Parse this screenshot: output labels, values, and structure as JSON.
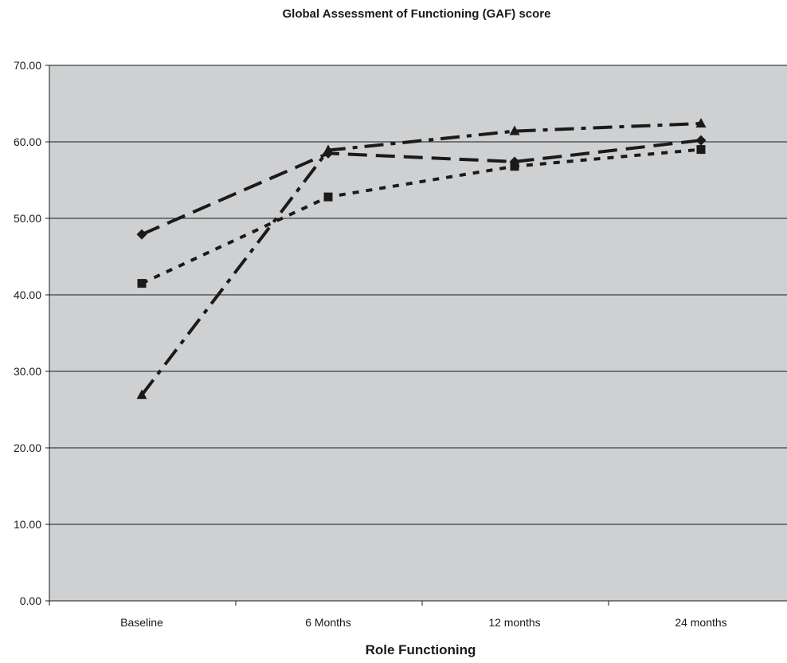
{
  "chart_data": {
    "type": "line",
    "title": "Global Assessment of Functioning (GAF) score",
    "xlabel": "Role Functioning",
    "ylabel": "",
    "categories": [
      "Baseline",
      "6 Months",
      "12 months",
      "24 months"
    ],
    "ylim": [
      0,
      70
    ],
    "yticks": [
      "0.00",
      "10.00",
      "20.00",
      "30.00",
      "40.00",
      "50.00",
      "60.00",
      "70.00"
    ],
    "grid": true,
    "plot_background": "#cfd0d2",
    "series": [
      {
        "marker": "diamond",
        "dash": "long-dash",
        "color": "#1a1a1a",
        "values": [
          47.9,
          58.5,
          57.4,
          60.2
        ]
      },
      {
        "marker": "square",
        "dash": "dotted",
        "color": "#1a1a1a",
        "values": [
          41.5,
          52.8,
          56.8,
          59.0
        ]
      },
      {
        "marker": "triangle",
        "dash": "dash-dot",
        "color": "#1a1a1a",
        "values": [
          26.9,
          58.9,
          61.4,
          62.4
        ]
      }
    ]
  }
}
